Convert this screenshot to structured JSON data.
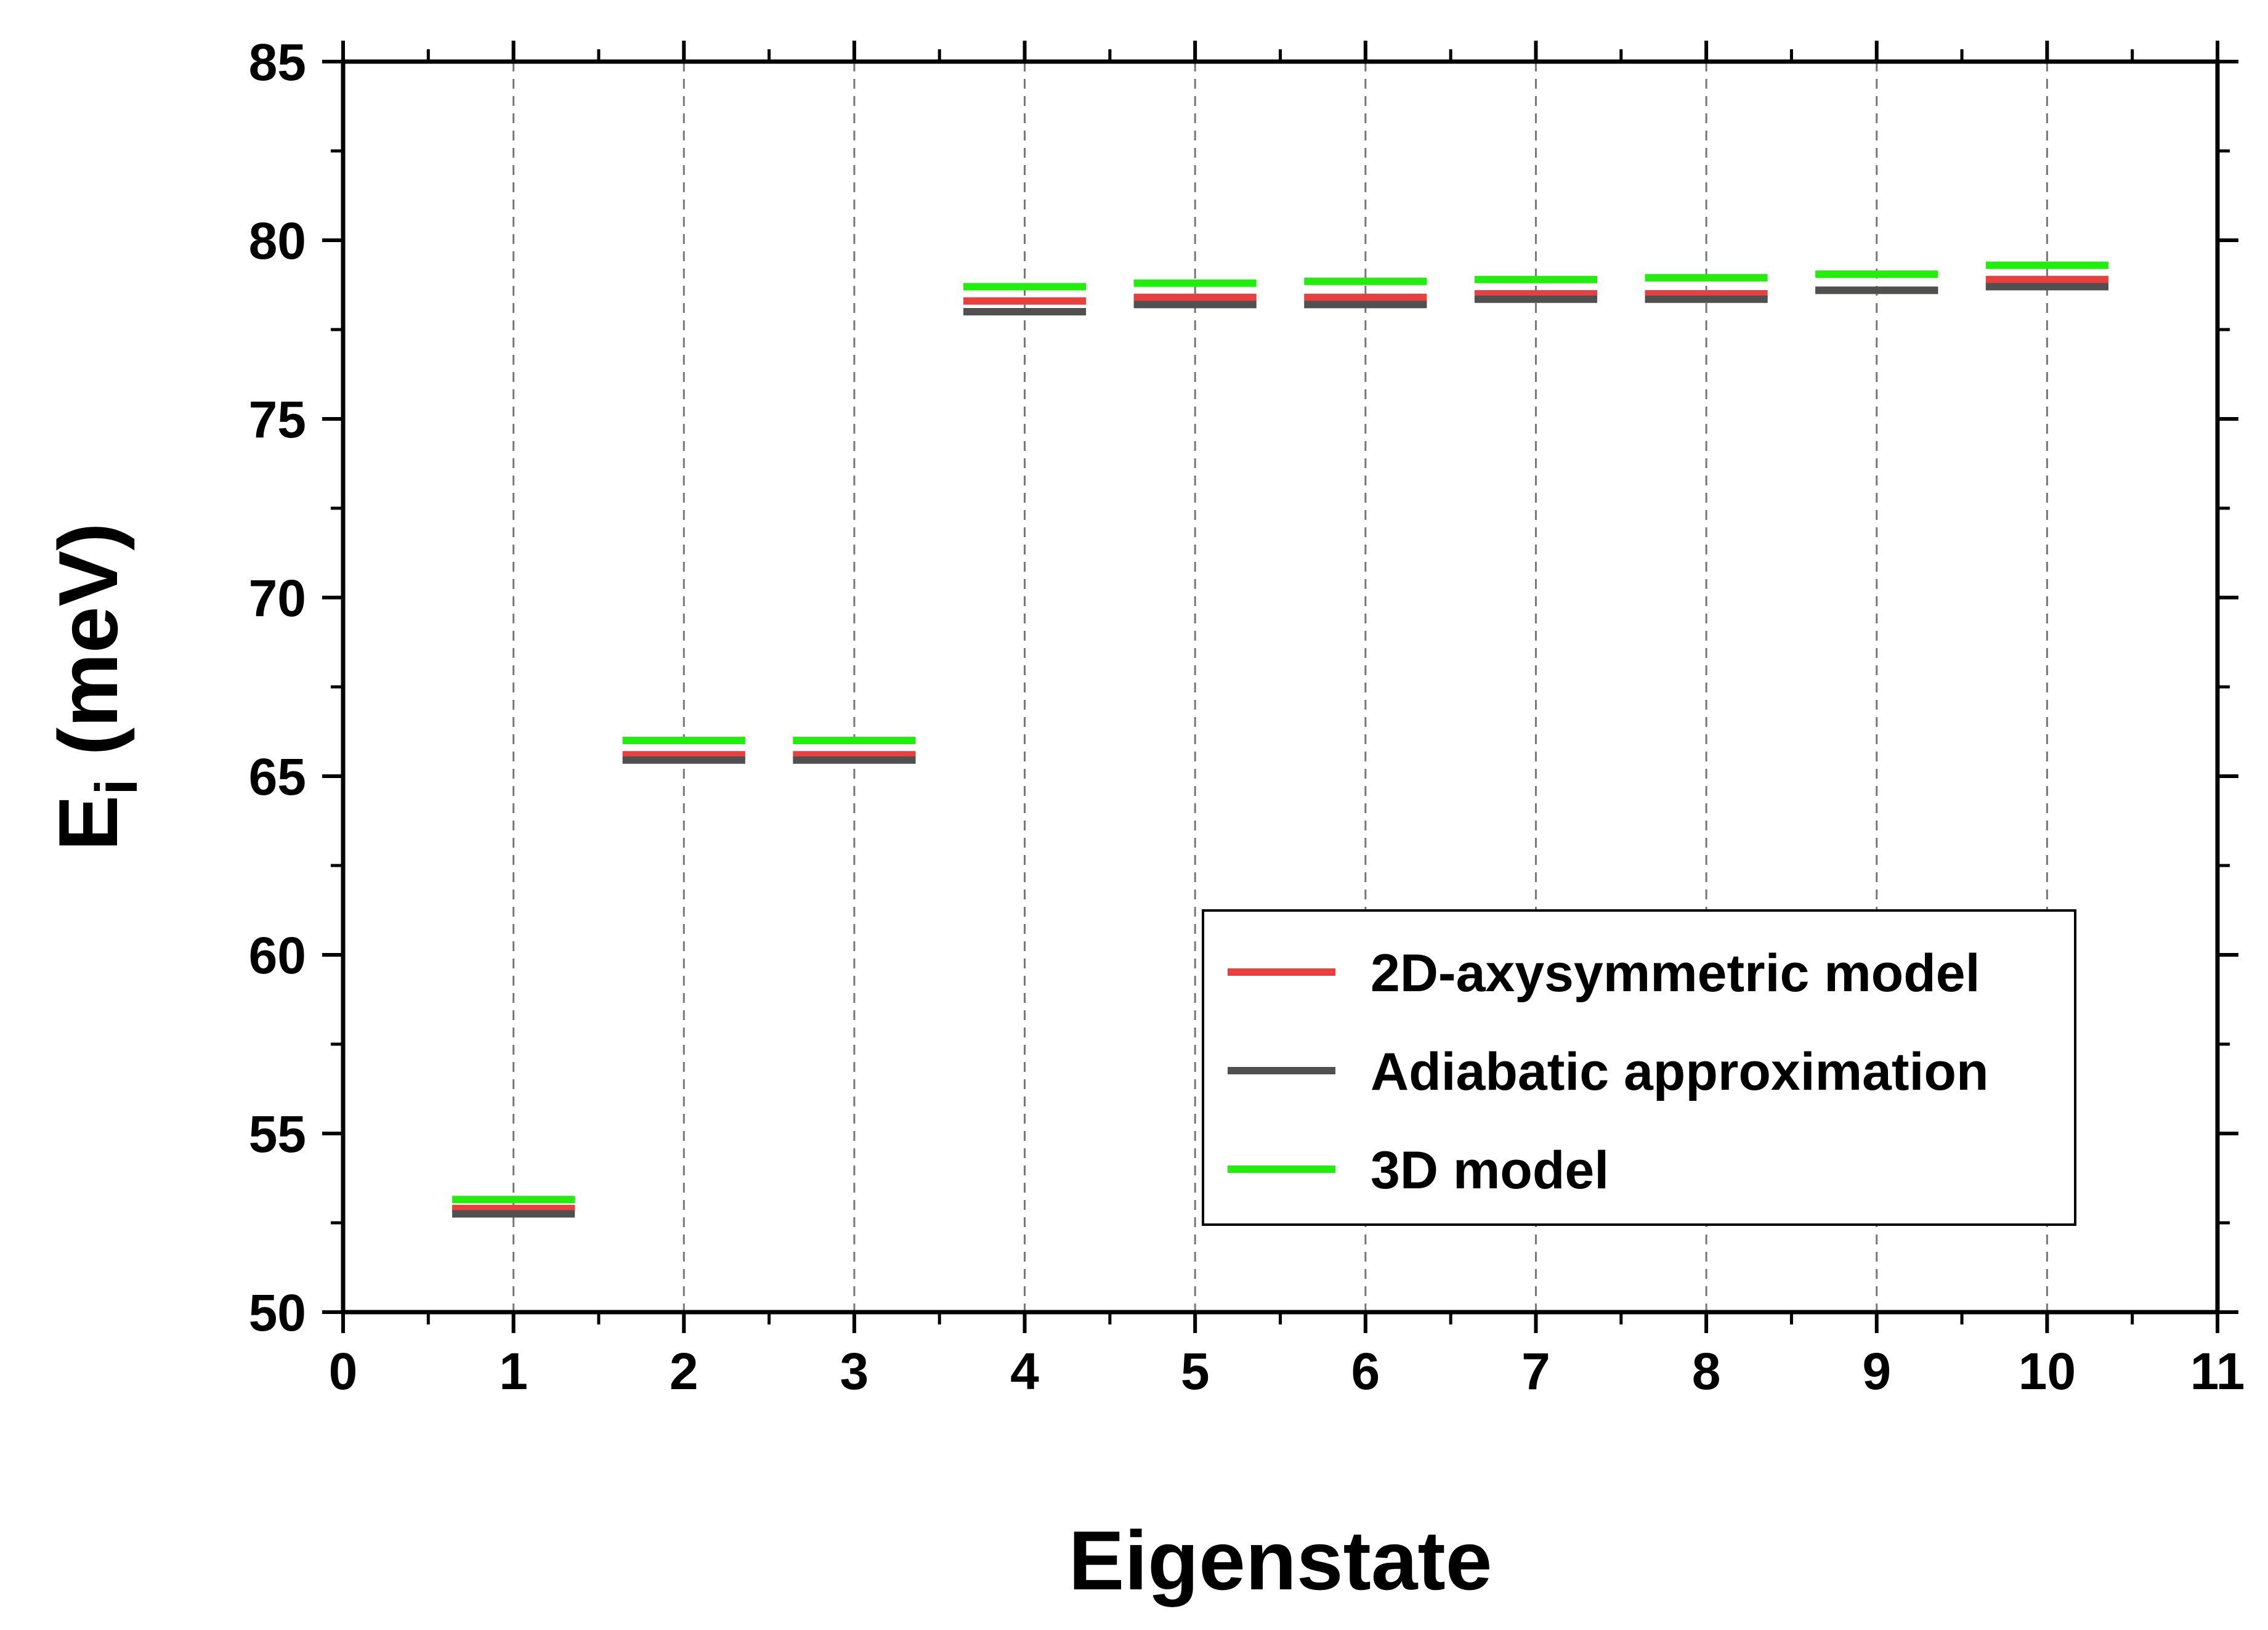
{
  "chart_data": {
    "type": "scatter",
    "marker": "horizontal-dash",
    "xlabel": "Eigenstate",
    "ylabel_main": "E",
    "ylabel_sub": "i",
    "ylabel_unit": " (meV)",
    "xlim": [
      0,
      11
    ],
    "ylim": [
      50,
      85
    ],
    "xticks": [
      "0",
      "1",
      "2",
      "3",
      "4",
      "5",
      "6",
      "7",
      "8",
      "9",
      "10",
      "11"
    ],
    "yticks": [
      "50",
      "55",
      "60",
      "65",
      "70",
      "75",
      "80",
      "85"
    ],
    "grid": "vertical dashed at x = 1..10",
    "legend_position": "lower-right",
    "x": [
      1,
      2,
      3,
      4,
      5,
      6,
      7,
      8,
      9,
      10
    ],
    "series": [
      {
        "name": "2D-axysymmetric model",
        "color": "#e8403f",
        "values": [
          52.9,
          65.6,
          65.6,
          78.3,
          78.4,
          78.4,
          78.5,
          78.5,
          78.6,
          78.9
        ]
      },
      {
        "name": "Adiabatic approximation",
        "color": "#505050",
        "values": [
          52.75,
          65.45,
          65.45,
          78.0,
          78.2,
          78.2,
          78.35,
          78.35,
          78.6,
          78.7
        ]
      },
      {
        "name": "3D model",
        "color": "#22ee0e",
        "values": [
          53.15,
          66.0,
          66.0,
          78.7,
          78.8,
          78.85,
          78.9,
          78.95,
          79.05,
          79.3
        ]
      }
    ]
  }
}
